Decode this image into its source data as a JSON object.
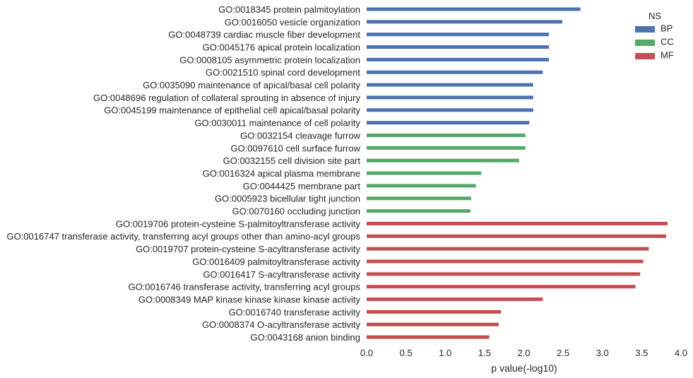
{
  "chart_data": {
    "type": "bar",
    "orientation": "horizontal",
    "title": "",
    "xlabel": "p value(-log10)",
    "ylabel": "",
    "xlim": [
      0,
      4.0
    ],
    "xticks": [
      "0.0",
      "0.5",
      "1.0",
      "1.5",
      "2.0",
      "2.5",
      "3.0",
      "3.5",
      "4.0"
    ],
    "grid": false,
    "legend": {
      "title": "NS",
      "position": "top-right",
      "entries": [
        {
          "name": "BP",
          "color": "#4c72b0"
        },
        {
          "name": "CC",
          "color": "#55a868"
        },
        {
          "name": "MF",
          "color": "#c44e52"
        }
      ]
    },
    "categories": [
      "GO:0018345 protein palmitoylation",
      "GO:0016050 vesicle organization",
      "GO:0048739 cardiac muscle fiber development",
      "GO:0045176 apical protein localization",
      "GO:0008105 asymmetric protein localization",
      "GO:0021510 spinal cord development",
      "GO:0035090 maintenance of apical/basal cell polarity",
      "GO:0048696 regulation of collateral sprouting in absence of injury",
      "GO:0045199 maintenance of epithelial cell apical/basal polarity",
      "GO:0030011 maintenance of cell polarity",
      "GO:0032154 cleavage furrow",
      "GO:0097610 cell surface furrow",
      "GO:0032155 cell division site part",
      "GO:0016324 apical plasma membrane",
      "GO:0044425 membrane part",
      "GO:0005923 bicellular tight junction",
      "GO:0070160 occluding junction",
      "GO:0019706 protein-cysteine S-palmitoyltransferase activity",
      "GO:0016747 transferase activity, transferring acyl groups other than amino-acyl groups",
      "GO:0019707 protein-cysteine S-acyltransferase activity",
      "GO:0016409 palmitoyltransferase activity",
      "GO:0016417 S-acyltransferase activity",
      "GO:0016746 transferase activity, transferring acyl groups",
      "GO:0008349 MAP kinase kinase kinase kinase activity",
      "GO:0016740 transferase activity",
      "GO:0008374 O-acyltransferase activity",
      "GO:0043168 anion binding"
    ],
    "groups": [
      "BP",
      "BP",
      "BP",
      "BP",
      "BP",
      "BP",
      "BP",
      "BP",
      "BP",
      "BP",
      "CC",
      "CC",
      "CC",
      "CC",
      "CC",
      "CC",
      "CC",
      "MF",
      "MF",
      "MF",
      "MF",
      "MF",
      "MF",
      "MF",
      "MF",
      "MF",
      "MF"
    ],
    "values": [
      2.72,
      2.49,
      2.32,
      2.32,
      2.32,
      2.24,
      2.12,
      2.12,
      2.12,
      2.07,
      2.02,
      2.02,
      1.94,
      1.46,
      1.39,
      1.33,
      1.32,
      3.83,
      3.81,
      3.59,
      3.52,
      3.48,
      3.42,
      2.24,
      1.71,
      1.68,
      1.56
    ]
  }
}
